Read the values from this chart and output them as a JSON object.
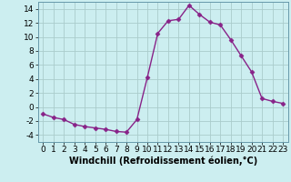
{
  "x": [
    0,
    1,
    2,
    3,
    4,
    5,
    6,
    7,
    8,
    9,
    10,
    11,
    12,
    13,
    14,
    15,
    16,
    17,
    18,
    19,
    20,
    21,
    22,
    23
  ],
  "y": [
    -1.0,
    -1.5,
    -1.8,
    -2.5,
    -2.8,
    -3.0,
    -3.2,
    -3.5,
    -3.6,
    -1.8,
    4.2,
    10.5,
    12.3,
    12.5,
    14.5,
    13.2,
    12.1,
    11.7,
    9.6,
    7.3,
    5.0,
    1.2,
    0.8,
    0.5
  ],
  "line_color": "#882288",
  "marker": "D",
  "marker_size": 2.5,
  "bg_color": "#cceef0",
  "grid_color": "#aacccc",
  "xlabel": "Windchill (Refroidissement éolien,°C)",
  "ylabel": "",
  "title": "",
  "xlim": [
    -0.5,
    23.5
  ],
  "ylim": [
    -5,
    15
  ],
  "yticks": [
    -4,
    -2,
    0,
    2,
    4,
    6,
    8,
    10,
    12,
    14
  ],
  "xticks": [
    0,
    1,
    2,
    3,
    4,
    5,
    6,
    7,
    8,
    9,
    10,
    11,
    12,
    13,
    14,
    15,
    16,
    17,
    18,
    19,
    20,
    21,
    22,
    23
  ],
  "xlabel_fontsize": 7,
  "tick_fontsize": 6.5,
  "line_width": 1.0
}
